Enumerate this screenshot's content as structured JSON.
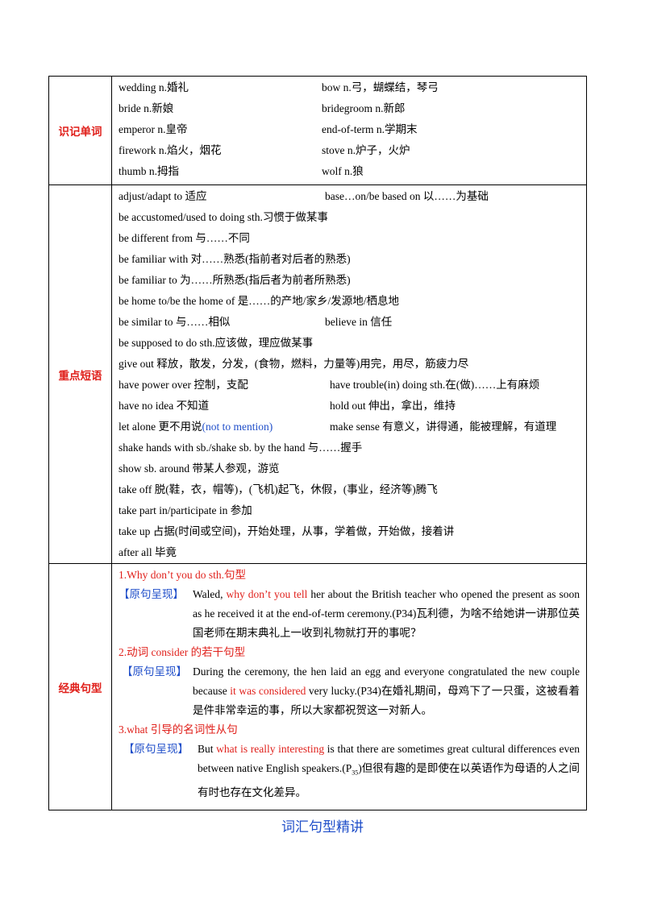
{
  "vocab": {
    "label": "识记单词",
    "rows": [
      [
        "wedding n.婚礼",
        "bow n.弓，蝴蝶结，琴弓"
      ],
      [
        "bride n.新娘",
        "bridegroom n.新郎"
      ],
      [
        "emperor n.皇帝",
        "end-of-term n.学期末"
      ],
      [
        "firework n.焰火，烟花",
        "stove n.炉子，火炉"
      ],
      [
        "thumb n.拇指",
        "wolf n.狼"
      ]
    ]
  },
  "phrases": {
    "label": "重点短语",
    "r1a": "adjust/adapt to 适应",
    "r1b": "base…on/be based on 以……为基础",
    "r2": "be accustomed/used to doing sth.习惯于做某事",
    "r3": "be different from 与……不同",
    "r4": "be familiar with 对……熟悉(指前者对后者的熟悉)",
    "r5": "be familiar to 为……所熟悉(指后者为前者所熟悉)",
    "r6": "be home to/be the home of 是……的产地/家乡/发源地/栖息地",
    "r7a": "be similar to 与……相似",
    "r7b": "believe in 信任",
    "r8": "be supposed to do sth.应该做，理应做某事",
    "r9": "give out 释放，散发，分发，(食物，燃料，力量等)用完，用尽，筋疲力尽",
    "r10a": "have power over 控制，支配",
    "r10b": "have trouble(in) doing sth.在(做)……上有麻烦",
    "r11a": "have  no  idea 不知道",
    "r11b": "hold out 伸出，拿出，维持",
    "r12a": "let alone 更不用说",
    "r12a_note": "(not  to  mention)",
    "r12b": "make sense 有意义，讲得通，能被理解，有道理",
    "r13": "shake hands with sb./shake sb.  by the hand 与……握手",
    "r14": "show sb.  around 带某人参观，游览",
    "r15": "take off 脱(鞋，衣，帽等)，(飞机)起飞，休假，(事业，经济等)腾飞",
    "r16": "take part in/participate in 参加",
    "r17": "take up 占据(时间或空间)，开始处理，从事，学着做，开始做，接着讲",
    "r18": "after all 毕竟"
  },
  "sentences": {
    "label": "经典句型",
    "tag": "【原句呈现】",
    "s1": {
      "title": "1.Why don’t you do sth.句型",
      "pre": "Waled, ",
      "hl": "why don’t you tell",
      "post": " her about the British teacher who opened the present as soon as he received it at the end-of-term ceremony.(P34)瓦利德，为啥不给她讲一讲那位英国老师在期末典礼上一收到礼物就打开的事呢？"
    },
    "s2": {
      "title": "2.动词 consider 的若干句型",
      "pre": "During the ceremony, the hen laid an egg and everyone congratulated the new couple because ",
      "hl": "it was considered",
      "post": " very lucky.(P34)在婚礼期间，母鸡下了一只蛋，这被看着是件非常幸运的事，所以大家都祝贺这一对新人。"
    },
    "s3": {
      "title": "3.what 引导的名词性从句",
      "pre": "But ",
      "hl": "what is really interesting",
      "post1": " is that there are sometimes great cultural differences even between native English speakers.(P",
      "sub": "35",
      "post2": ")但很有趣的是即使在以英语作为母语的人之间有时也存在文化差异。"
    }
  },
  "caption": "词汇句型精讲"
}
